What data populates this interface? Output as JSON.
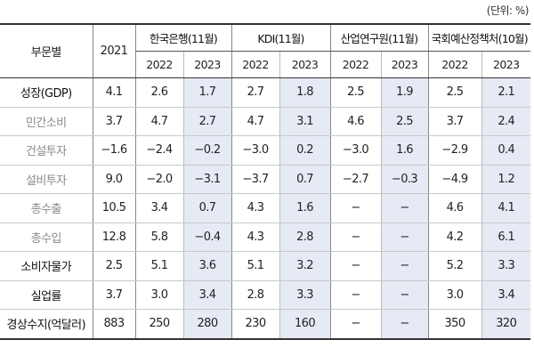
{
  "unit_label": "(단위: %)",
  "header": {
    "category": "부문별",
    "base_year": "2021",
    "sources": [
      {
        "name": "한국은행(11월)",
        "years": [
          "2022",
          "2023"
        ]
      },
      {
        "name": "KDI(11월)",
        "years": [
          "2022",
          "2023"
        ]
      },
      {
        "name": "산업연구원(11월)",
        "years": [
          "2022",
          "2023"
        ]
      },
      {
        "name": "국회예산정책처(10월)",
        "years": [
          "2022",
          "2023"
        ]
      }
    ]
  },
  "rows": [
    {
      "category": "성장(GDP)",
      "sub": false,
      "v2021": "4.1",
      "values": [
        "2.6",
        "1.7",
        "2.7",
        "1.8",
        "2.5",
        "1.9",
        "2.5",
        "2.1"
      ]
    },
    {
      "category": "민간소비",
      "sub": true,
      "v2021": "3.7",
      "values": [
        "4.7",
        "2.7",
        "4.7",
        "3.1",
        "4.6",
        "2.5",
        "3.7",
        "2.4"
      ]
    },
    {
      "category": "건설투자",
      "sub": true,
      "v2021": "−1.6",
      "values": [
        "−2.4",
        "−0.2",
        "−3.0",
        "0.2",
        "−3.0",
        "1.6",
        "−2.9",
        "0.4"
      ]
    },
    {
      "category": "설비투자",
      "sub": true,
      "v2021": "9.0",
      "values": [
        "−2.0",
        "−3.1",
        "−3.7",
        "0.7",
        "−2.7",
        "−0.3",
        "−4.9",
        "1.2"
      ]
    },
    {
      "category": "총수출",
      "sub": true,
      "v2021": "10.5",
      "values": [
        "3.4",
        "0.7",
        "4.3",
        "1.6",
        "−",
        "−",
        "4.6",
        "4.1"
      ]
    },
    {
      "category": "총수입",
      "sub": true,
      "v2021": "12.8",
      "values": [
        "5.8",
        "−0.4",
        "4.3",
        "2.8",
        "−",
        "−",
        "4.2",
        "6.1"
      ]
    },
    {
      "category": "소비자물가",
      "sub": false,
      "v2021": "2.5",
      "values": [
        "5.1",
        "3.6",
        "5.1",
        "3.2",
        "−",
        "−",
        "5.2",
        "3.3"
      ]
    },
    {
      "category": "실업률",
      "sub": false,
      "v2021": "3.7",
      "values": [
        "3.0",
        "3.4",
        "2.8",
        "3.3",
        "−",
        "−",
        "3.0",
        "3.4"
      ]
    },
    {
      "category": "경상수지(억달러)",
      "sub": false,
      "v2021": "883",
      "values": [
        "250",
        "280",
        "230",
        "160",
        "−",
        "−",
        "350",
        "320"
      ]
    }
  ],
  "colors": {
    "shade_2023": "#e6eaf5",
    "sub_category_text": "#8a8a8a"
  }
}
